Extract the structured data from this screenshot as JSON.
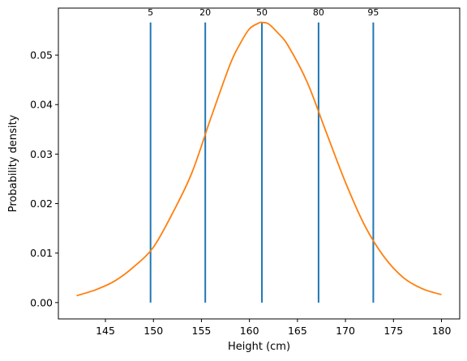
{
  "chart_data": {
    "type": "line",
    "title": "",
    "xlabel": "Height (cm)",
    "ylabel": "Probability density",
    "xlim": [
      140.1,
      181.9
    ],
    "ylim": [
      -0.0033,
      0.0595
    ],
    "xticks": [
      145,
      150,
      155,
      160,
      165,
      170,
      175,
      180
    ],
    "yticks": [
      0.0,
      0.01,
      0.02,
      0.03,
      0.04,
      0.05
    ],
    "ytick_labels": [
      "0.00",
      "0.01",
      "0.02",
      "0.03",
      "0.04",
      "0.05"
    ],
    "grid": false,
    "series": [
      {
        "type": "curve",
        "color": "#ff7f0e",
        "x": [
          142,
          144,
          146,
          148,
          150,
          152,
          154,
          156,
          158,
          159,
          160,
          161,
          161.3,
          162,
          163,
          164,
          166,
          168,
          170,
          172,
          174,
          176,
          178,
          180
        ],
        "y": [
          0.0014,
          0.0026,
          0.0044,
          0.0073,
          0.0112,
          0.0181,
          0.0262,
          0.0374,
          0.0482,
          0.0522,
          0.0553,
          0.0565,
          0.0566,
          0.0563,
          0.0544,
          0.052,
          0.0446,
          0.0344,
          0.0243,
          0.0156,
          0.0093,
          0.0051,
          0.0028,
          0.0016
        ]
      }
    ],
    "vlines": {
      "color": "#1f77b4",
      "ymin": 0.0,
      "ymax": 0.0566,
      "items": [
        {
          "label": "5",
          "x": 149.7
        },
        {
          "label": "20",
          "x": 155.4
        },
        {
          "label": "50",
          "x": 161.3
        },
        {
          "label": "80",
          "x": 167.2
        },
        {
          "label": "95",
          "x": 172.9
        }
      ]
    }
  }
}
